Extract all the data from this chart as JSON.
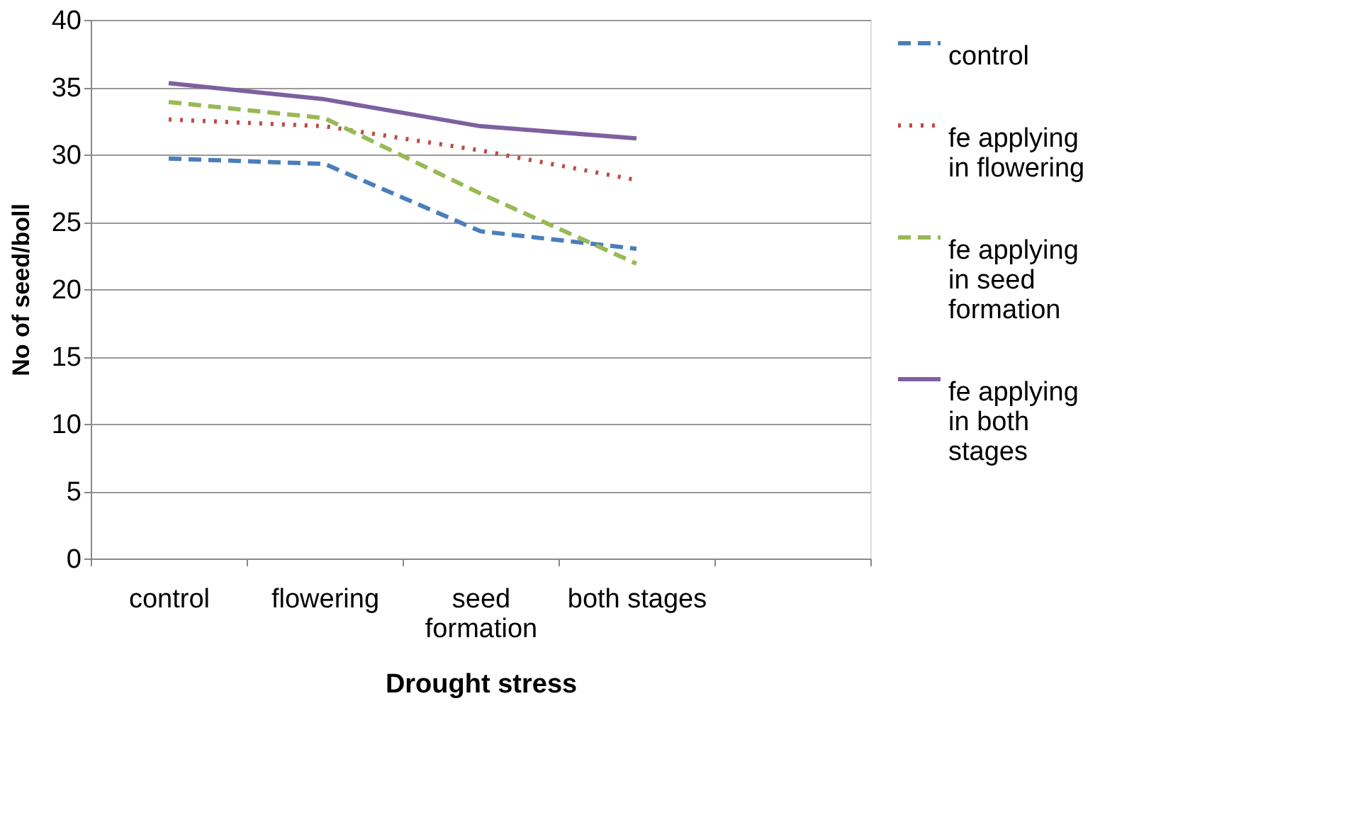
{
  "chart_data": {
    "type": "line",
    "xlabel": "Drought  stress",
    "ylabel": "No of seed/boll",
    "categories": [
      "control",
      "flowering",
      "seed formation",
      "both stages",
      null
    ],
    "series": [
      {
        "name": "control",
        "color": "#4a7ebb",
        "line_style": "dashed",
        "values": [
          29.7,
          29.3,
          24.3,
          23.0,
          null
        ]
      },
      {
        "name": "fe applying in flowering",
        "color": "#be4b48",
        "line_style": "dotted",
        "values": [
          32.6,
          32.1,
          30.3,
          28.1,
          null
        ]
      },
      {
        "name": "fe applying in seed formation",
        "color": "#98b954",
        "line_style": "dashed",
        "values": [
          33.9,
          32.7,
          27.1,
          21.9,
          null
        ]
      },
      {
        "name": "fe applying in both stages",
        "color": "#7d60a0",
        "line_style": "solid",
        "values": [
          35.3,
          34.1,
          32.1,
          31.2,
          null
        ]
      }
    ],
    "ylim": [
      0,
      40
    ],
    "yticks": [
      0,
      5,
      10,
      15,
      20,
      25,
      30,
      35,
      40
    ],
    "grid": "y",
    "legend": "right",
    "marker": "none"
  }
}
